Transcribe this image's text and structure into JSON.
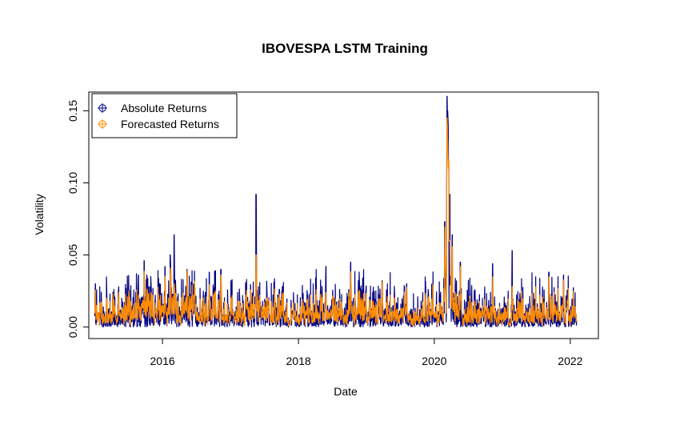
{
  "chart_data": {
    "type": "line",
    "title": "IBOVESPA LSTM Training",
    "xlabel": "Date",
    "ylabel": "Volatility",
    "x_ticks": [
      "2016",
      "2018",
      "2020",
      "2022"
    ],
    "y_ticks": [
      "0.00",
      "0.05",
      "0.10",
      "0.15"
    ],
    "xlim": [
      "2014-12-01",
      "2022-06-01"
    ],
    "ylim": [
      -0.008,
      0.163
    ],
    "grid": false,
    "legend_position": "top-left",
    "series": [
      {
        "name": "Absolute Returns",
        "color": "#000080",
        "peaks": [
          [
            "2015-01-05",
            0.03
          ],
          [
            "2015-04-10",
            0.024
          ],
          [
            "2015-08-24",
            0.036
          ],
          [
            "2015-09-25",
            0.046
          ],
          [
            "2016-01-15",
            0.042
          ],
          [
            "2016-02-12",
            0.05
          ],
          [
            "2016-03-04",
            0.064
          ],
          [
            "2016-05-12",
            0.04
          ],
          [
            "2016-09-09",
            0.038
          ],
          [
            "2016-11-10",
            0.04
          ],
          [
            "2017-05-18",
            0.092
          ],
          [
            "2017-09-20",
            0.026
          ],
          [
            "2018-05-28",
            0.042
          ],
          [
            "2018-10-08",
            0.045
          ],
          [
            "2019-03-27",
            0.032
          ],
          [
            "2019-08-05",
            0.03
          ],
          [
            "2020-02-26",
            0.073
          ],
          [
            "2020-03-09",
            0.16
          ],
          [
            "2020-03-12",
            0.15
          ],
          [
            "2020-03-16",
            0.14
          ],
          [
            "2020-03-18",
            0.115
          ],
          [
            "2020-03-24",
            0.092
          ],
          [
            "2020-04-06",
            0.064
          ],
          [
            "2020-05-20",
            0.045
          ],
          [
            "2020-11-09",
            0.044
          ],
          [
            "2021-02-22",
            0.053
          ],
          [
            "2021-09-08",
            0.038
          ],
          [
            "2021-11-26",
            0.036
          ]
        ]
      },
      {
        "name": "Forecasted Returns",
        "color": "#FF8C00",
        "peaks": [
          [
            "2015-08-24",
            0.022
          ],
          [
            "2016-03-04",
            0.03
          ],
          [
            "2017-05-18",
            0.05
          ],
          [
            "2018-05-28",
            0.024
          ],
          [
            "2020-03-09",
            0.145
          ],
          [
            "2020-03-12",
            0.13
          ],
          [
            "2020-03-16",
            0.11
          ],
          [
            "2020-03-24",
            0.06
          ],
          [
            "2021-02-22",
            0.028
          ]
        ]
      }
    ]
  }
}
